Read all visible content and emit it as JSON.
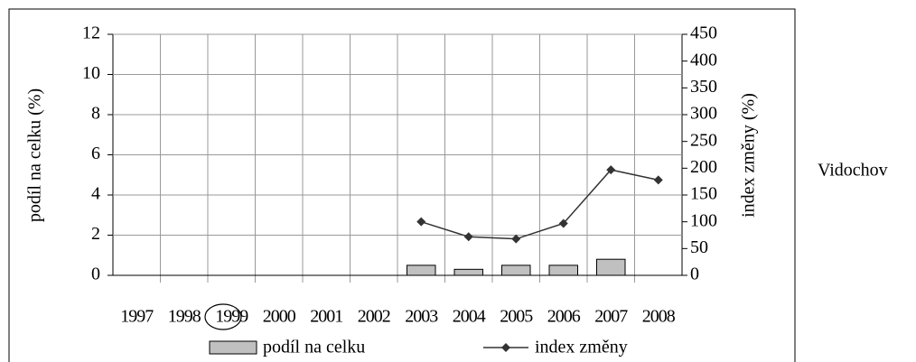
{
  "chart_data": {
    "type": "bar-line",
    "categories": [
      "1997",
      "1998",
      "1999",
      "2000",
      "2001",
      "2002",
      "2003",
      "2004",
      "2005",
      "2006",
      "2007",
      "2008"
    ],
    "series": [
      {
        "name": "podíl na celku",
        "type": "bar",
        "color": "#c0c0c0",
        "values": [
          null,
          null,
          null,
          null,
          null,
          null,
          0.5,
          0.3,
          0.5,
          0.5,
          0.8,
          null
        ]
      },
      {
        "name": "index změny",
        "type": "line",
        "axis": "y2",
        "color": "#333333",
        "values": [
          null,
          null,
          null,
          null,
          null,
          null,
          100,
          72,
          68,
          97,
          197,
          178
        ]
      }
    ],
    "ylabel": "podíl na celku (%)",
    "y2label": "index změny (%)",
    "ylim": [
      0,
      12
    ],
    "yticks": [
      0,
      2,
      4,
      6,
      8,
      10,
      12
    ],
    "y2lim": [
      0,
      450
    ],
    "y2ticks": [
      0,
      50,
      100,
      150,
      200,
      250,
      300,
      350,
      400,
      450
    ],
    "grid": true,
    "legend": "bottom",
    "annotation": "Vidochov"
  }
}
